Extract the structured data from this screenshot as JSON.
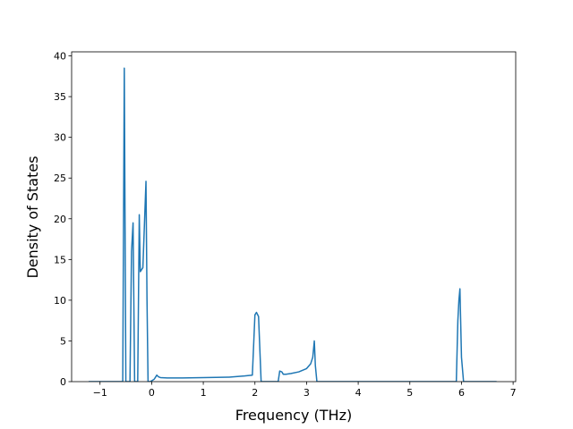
{
  "chart_data": {
    "type": "line",
    "title": "",
    "xlabel": "Frequency (THz)",
    "ylabel": "Density of States",
    "xlim": [
      -1.55,
      7.05
    ],
    "ylim": [
      0,
      40.5
    ],
    "xticks": [
      -1,
      0,
      1,
      2,
      3,
      4,
      5,
      6,
      7
    ],
    "xtick_labels": [
      "−1",
      "0",
      "1",
      "2",
      "3",
      "4",
      "5",
      "6",
      "7"
    ],
    "yticks": [
      0,
      5,
      10,
      15,
      20,
      25,
      30,
      35,
      40
    ],
    "ytick_labels": [
      "0",
      "5",
      "10",
      "15",
      "20",
      "25",
      "30",
      "35",
      "40"
    ],
    "grid": false,
    "line_color": "#1f77b4",
    "series": [
      {
        "x": [
          -1.22,
          -0.56,
          -0.53,
          -0.5,
          -0.47,
          -0.42,
          -0.39,
          -0.36,
          -0.33,
          -0.3,
          -0.27,
          -0.24,
          -0.22,
          -0.19,
          -0.17,
          -0.11,
          -0.09,
          -0.07,
          -0.05,
          -0.04,
          -0.03,
          0.0,
          0.05,
          0.1,
          0.13,
          0.17,
          0.3,
          0.6,
          1.0,
          1.5,
          1.8,
          1.95,
          2.0,
          2.03,
          2.07,
          2.12,
          2.18,
          2.45,
          2.48,
          2.52,
          2.55,
          2.6,
          2.7,
          2.85,
          3.0,
          3.08,
          3.12,
          3.15,
          3.17,
          3.2,
          3.4,
          5.9,
          5.93,
          5.95,
          5.97,
          6.0,
          6.04,
          6.68
        ],
        "y": [
          0.0,
          0.0,
          38.5,
          0.0,
          0.0,
          0.0,
          16.0,
          19.5,
          0.0,
          0.0,
          0.0,
          20.5,
          13.5,
          13.8,
          14.0,
          24.6,
          10.0,
          0.0,
          0.0,
          0.0,
          0.0,
          0.1,
          0.3,
          0.8,
          0.6,
          0.5,
          0.45,
          0.45,
          0.5,
          0.55,
          0.7,
          0.8,
          8.2,
          8.5,
          8.0,
          0.0,
          0.0,
          0.0,
          1.3,
          1.2,
          0.9,
          0.9,
          1.0,
          1.2,
          1.6,
          2.2,
          3.0,
          5.0,
          2.0,
          0.0,
          0.0,
          0.0,
          7.5,
          10.0,
          11.4,
          3.0,
          0.0,
          0.0
        ]
      }
    ]
  }
}
